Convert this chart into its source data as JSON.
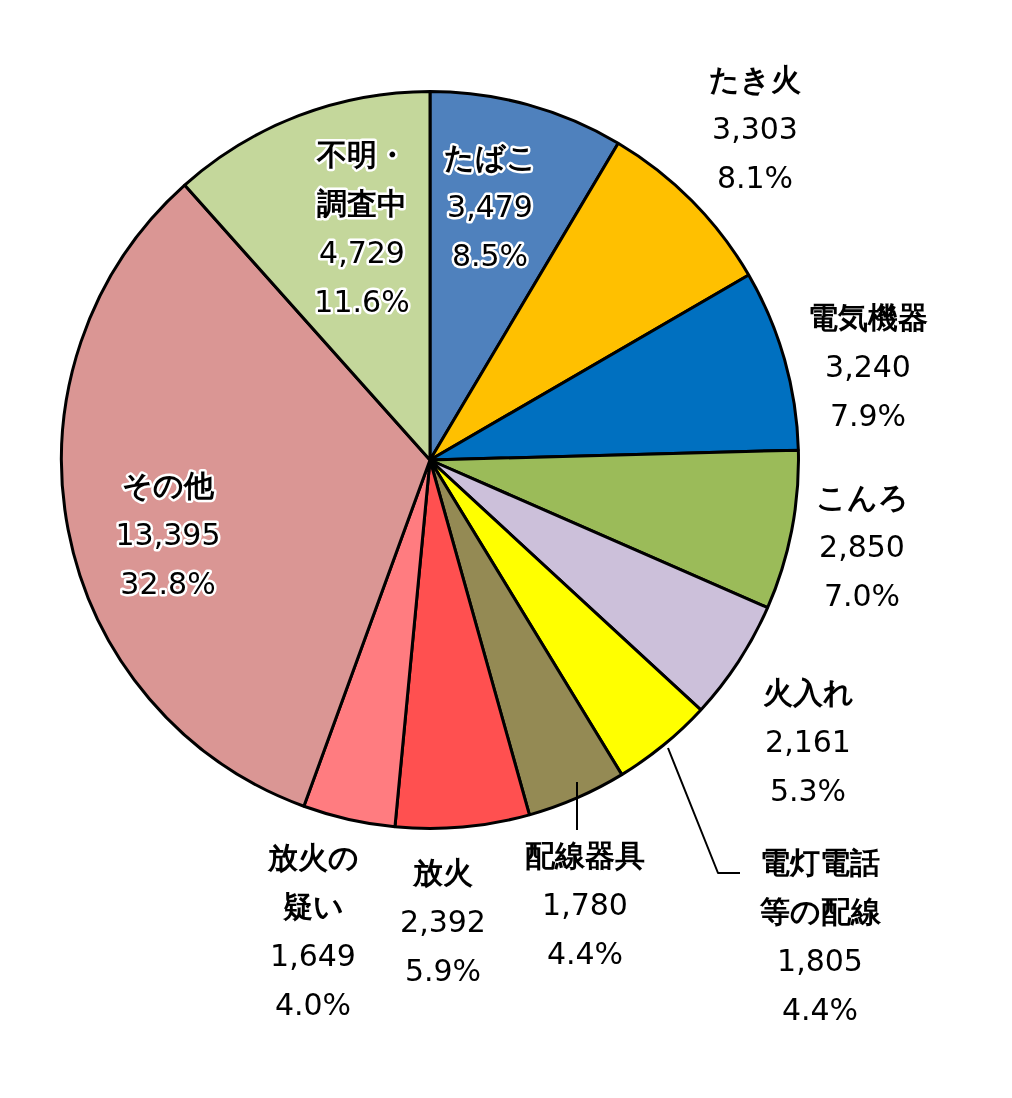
{
  "chart_data": {
    "type": "pie",
    "categories": [
      "たばこ",
      "たき火",
      "電気機器",
      "こんろ",
      "火入れ",
      "電灯電話等の配線",
      "配線器具",
      "放火",
      "放火の疑い",
      "その他",
      "不明・調査中"
    ],
    "values": [
      3479,
      3303,
      3240,
      2850,
      2161,
      1805,
      1780,
      2392,
      1649,
      13395,
      4729
    ],
    "value_labels": [
      "3,479\n8.5%",
      "3,303\n8.1%",
      "3,240\n7.9%",
      "2,850\n7.0%",
      "2,161\n5.3%",
      "1,805\n4.4%",
      "1,780\n4.4%",
      "2,392\n5.9%",
      "1,649\n4.0%",
      "13,395\n32.8%",
      "4,729\n11.6%"
    ],
    "colors": [
      "#4f81bd",
      "#ffc000",
      "#0070c0",
      "#9bbb59",
      "#ccc0da",
      "#ffff00",
      "#948a54",
      "#ff5050",
      "#ff7c80",
      "#da9694",
      "#c4d79b"
    ],
    "legend": false
  }
}
